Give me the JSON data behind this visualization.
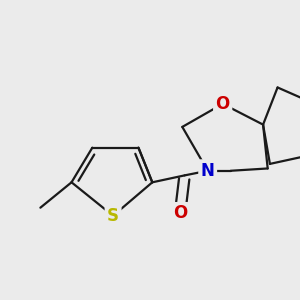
{
  "bg": "#ebebeb",
  "bc": "#1a1a1a",
  "S_color": "#b8b800",
  "O_color": "#cc0000",
  "N_color": "#0000cc",
  "lw": 1.6,
  "figsize": [
    3.0,
    3.0
  ],
  "dpi": 100,
  "xlim": [
    20,
    280
  ],
  "ylim": [
    30,
    270
  ]
}
